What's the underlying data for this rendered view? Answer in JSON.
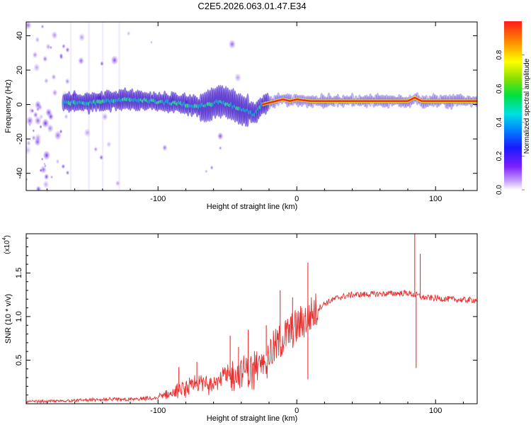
{
  "title": "C2E5.2026.063.01.47.E34",
  "colors": {
    "trace": "#e8282a",
    "speckle": "#6a1fd8",
    "band_core": "#2aa7d6",
    "line": "#e83030"
  },
  "chart_data": [
    {
      "type": "heatmap",
      "xlabel": "Height of straight line (km)",
      "ylabel": "Frequency (Hz)",
      "xlim": [
        -195,
        130
      ],
      "ylim": [
        -50,
        48
      ],
      "xticks": [
        -100,
        0,
        100
      ],
      "yticks": [
        -40,
        -20,
        0,
        20,
        40
      ],
      "colorbar": {
        "label": "Normalized spectral amplitude",
        "range": [
          0.0,
          1.0
        ],
        "ticks": [
          "0.0",
          "0.2",
          "0.4",
          "0.6",
          "0.8"
        ],
        "tick_values": [
          0.0,
          0.2,
          0.4,
          0.6,
          0.8
        ]
      },
      "ridge": {
        "x": [
          -165,
          -150,
          -135,
          -120,
          -105,
          -90,
          -80,
          -70,
          -62,
          -55,
          -48,
          -42,
          -35,
          -30,
          -25,
          -20,
          -15,
          -10,
          -5,
          0,
          10,
          30,
          60,
          80,
          85,
          90,
          110,
          130
        ],
        "y": [
          1,
          1,
          2,
          3,
          2,
          1,
          0,
          -1,
          0,
          2,
          0,
          -2,
          -4,
          -6,
          0,
          1,
          2,
          3,
          2,
          3,
          2,
          2,
          2,
          2,
          4,
          2,
          2,
          2
        ]
      }
    },
    {
      "type": "line",
      "xlabel": "Height of straight line (km)",
      "ylabel": "SNR (10 * v/v)",
      "yscale_label": "(x10",
      "yscale_exp": "4",
      "xlim": [
        -195,
        130
      ],
      "ylim": [
        0,
        1.95
      ],
      "xticks": [
        -100,
        0,
        100
      ],
      "yticks": [
        0.5,
        1.0,
        1.5
      ],
      "ytick_labels": [
        "0.5",
        "1.0",
        "1.5"
      ],
      "envelope": {
        "x": [
          -195,
          -170,
          -150,
          -120,
          -100,
          -90,
          -80,
          -70,
          -60,
          -50,
          -40,
          -30,
          -25,
          -20,
          -15,
          -10,
          -5,
          0,
          5,
          10,
          20,
          30,
          40,
          60,
          80,
          84,
          86,
          88,
          90,
          100,
          120,
          130
        ],
        "y": [
          0.02,
          0.03,
          0.05,
          0.06,
          0.08,
          0.11,
          0.16,
          0.21,
          0.24,
          0.27,
          0.3,
          0.33,
          0.5,
          0.58,
          0.65,
          0.75,
          0.82,
          0.88,
          0.95,
          1.02,
          1.15,
          1.22,
          1.25,
          1.26,
          1.27,
          1.25,
          1.25,
          1.24,
          1.22,
          1.21,
          1.19,
          1.19
        ]
      },
      "spikes": [
        {
          "x": -85,
          "y": 0.42
        },
        {
          "x": -72,
          "y": 0.48
        },
        {
          "x": -48,
          "y": 0.78
        },
        {
          "x": -42,
          "y": 0.65
        },
        {
          "x": -35,
          "y": 0.85
        },
        {
          "x": -22,
          "y": 0.9
        },
        {
          "x": -12,
          "y": 1.3
        },
        {
          "x": -3,
          "y": 1.22
        },
        {
          "x": 8,
          "y": 1.62
        },
        {
          "x": 8,
          "y": 0.28
        },
        {
          "x": 85,
          "y": 1.97
        },
        {
          "x": 86,
          "y": 0.41
        },
        {
          "x": 89,
          "y": 1.72
        }
      ]
    }
  ]
}
